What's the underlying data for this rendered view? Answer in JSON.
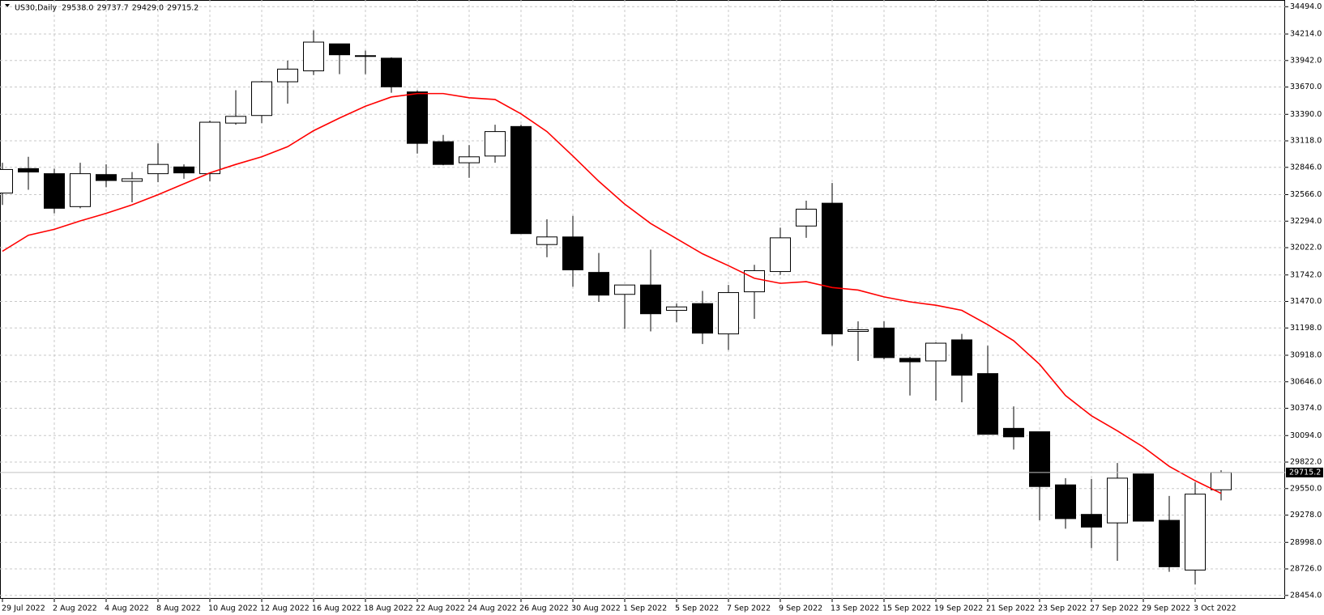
{
  "chart_data": {
    "type": "candlestick",
    "title": "US30,Daily",
    "ohlc_header": [
      {
        "value": 29538,
        "label": "29538.0"
      },
      {
        "value": 29737.7,
        "label": "29737.7"
      },
      {
        "value": 29429,
        "label": "29429.0"
      },
      {
        "value": 29715.2,
        "label": "29715.2"
      }
    ],
    "price_line": {
      "value": 29715.2,
      "label": "29715.2"
    },
    "categories": [
      "29 Jul 2022",
      null,
      "2 Aug 2022",
      null,
      "4 Aug 2022",
      null,
      "8 Aug 2022",
      null,
      "10 Aug 2022",
      null,
      "12 Aug 2022",
      null,
      "16 Aug 2022",
      null,
      "18 Aug 2022",
      null,
      "22 Aug 2022",
      null,
      "24 Aug 2022",
      null,
      "26 Aug 2022",
      null,
      "30 Aug 2022",
      null,
      "1 Sep 2022",
      null,
      "5 Sep 2022",
      null,
      "7 Sep 2022",
      null,
      "9 Sep 2022",
      null,
      "13 Sep 2022",
      null,
      "15 Sep 2022",
      null,
      "19 Sep 2022",
      null,
      "21 Sep 2022",
      null,
      "23 Sep 2022",
      null,
      "27 Sep 2022",
      null,
      "29 Sep 2022",
      null,
      "3 Oct 2022",
      null
    ],
    "open": [
      32582,
      32833,
      32781,
      32443,
      32772,
      32703,
      32781,
      32850,
      32781,
      33300,
      33378,
      33724,
      33836,
      34113,
      33984,
      33966,
      33620,
      33109,
      32893,
      32962,
      33265,
      32054,
      32132,
      31768,
      31543,
      31639,
      31379,
      31448,
      31137,
      31569,
      31777,
      32244,
      32478,
      31163,
      31197,
      30886,
      30860,
      31076,
      30730,
      30168,
      30133,
      29588,
      29285,
      29198,
      29700,
      29224,
      28714,
      29538
    ],
    "high": [
      32893,
      32954,
      32833,
      32893,
      32876,
      32798,
      33092,
      32876,
      33326,
      33637,
      33733,
      33940,
      34252,
      34113,
      34044,
      33975,
      33637,
      33179,
      33075,
      33283,
      33283,
      32313,
      32348,
      31967,
      31639,
      32002,
      31448,
      31578,
      31639,
      31846,
      32227,
      32504,
      32686,
      31266,
      31266,
      30903,
      31050,
      31137,
      31016,
      30393,
      30133,
      29657,
      29649,
      29813,
      29700,
      29475,
      29614,
      29737.7
    ],
    "low": [
      32460,
      32616,
      32374,
      32426,
      32642,
      32487,
      32694,
      32729,
      32703,
      33283,
      33300,
      33499,
      33793,
      33802,
      33802,
      33611,
      32988,
      32867,
      32738,
      32893,
      32166,
      31924,
      31621,
      31466,
      31188,
      31163,
      31258,
      31033,
      30972,
      31292,
      31742,
      32123,
      31016,
      30860,
      30877,
      30505,
      30453,
      30436,
      30107,
      29951,
      29224,
      29138,
      28939,
      28809,
      29216,
      28696,
      28567,
      29429
    ],
    "close": [
      32824,
      32798,
      32426,
      32781,
      32711,
      32729,
      32876,
      32789,
      33309,
      33369,
      33724,
      33854,
      34131,
      34001,
      33992,
      33672,
      33092,
      32876,
      32954,
      33213,
      32166,
      32132,
      31794,
      31535,
      31639,
      31344,
      31414,
      31145,
      31561,
      31786,
      32123,
      32417,
      31137,
      31180,
      30894,
      30851,
      31042,
      30713,
      30107,
      30081,
      29571,
      29242,
      29155,
      29657,
      29216,
      28748,
      29493,
      29715.2
    ],
    "up_color": "#ffffff",
    "down_color": "#000000",
    "ma": {
      "color": "#ff0000",
      "values": [
        31985,
        32149,
        32210,
        32296,
        32374,
        32461,
        32565,
        32677,
        32789,
        32876,
        32954,
        33058,
        33222,
        33352,
        33473,
        33568,
        33603,
        33603,
        33560,
        33542,
        33395,
        33213,
        32962,
        32703,
        32469,
        32270,
        32114,
        31959,
        31837,
        31708,
        31656,
        31673,
        31613,
        31587,
        31517,
        31466,
        31431,
        31379,
        31232,
        31067,
        30825,
        30505,
        30297,
        30142,
        29977,
        29778,
        29631,
        29501
      ]
    },
    "ylim": [
      28419,
      34563
    ],
    "yticks": [
      {
        "value": 28454,
        "label": "28454.0"
      },
      {
        "value": 28726,
        "label": "28726.0"
      },
      {
        "value": 28998,
        "label": "28998.0"
      },
      {
        "value": 29278,
        "label": "29278.0"
      },
      {
        "value": 29550,
        "label": "29550.0"
      },
      {
        "value": 29822,
        "label": "29822.0"
      },
      {
        "value": 30094,
        "label": "30094.0"
      },
      {
        "value": 30374,
        "label": "30374.0"
      },
      {
        "value": 30646,
        "label": "30646.0"
      },
      {
        "value": 30918,
        "label": "30918.0"
      },
      {
        "value": 31198,
        "label": "31198.0"
      },
      {
        "value": 31470,
        "label": "31470.0"
      },
      {
        "value": 31742,
        "label": "31742.0"
      },
      {
        "value": 32022,
        "label": "32022.0"
      },
      {
        "value": 32294,
        "label": "32294.0"
      },
      {
        "value": 32566,
        "label": "32566.0"
      },
      {
        "value": 32846,
        "label": "32846.0"
      },
      {
        "value": 33118,
        "label": "33118.0"
      },
      {
        "value": 33390,
        "label": "33390.0"
      },
      {
        "value": 33670,
        "label": "33670.0"
      },
      {
        "value": 33942,
        "label": "33942.0"
      },
      {
        "value": 34214,
        "label": "34214.0"
      },
      {
        "value": 34494,
        "label": "34494.0"
      }
    ],
    "grid": true
  }
}
